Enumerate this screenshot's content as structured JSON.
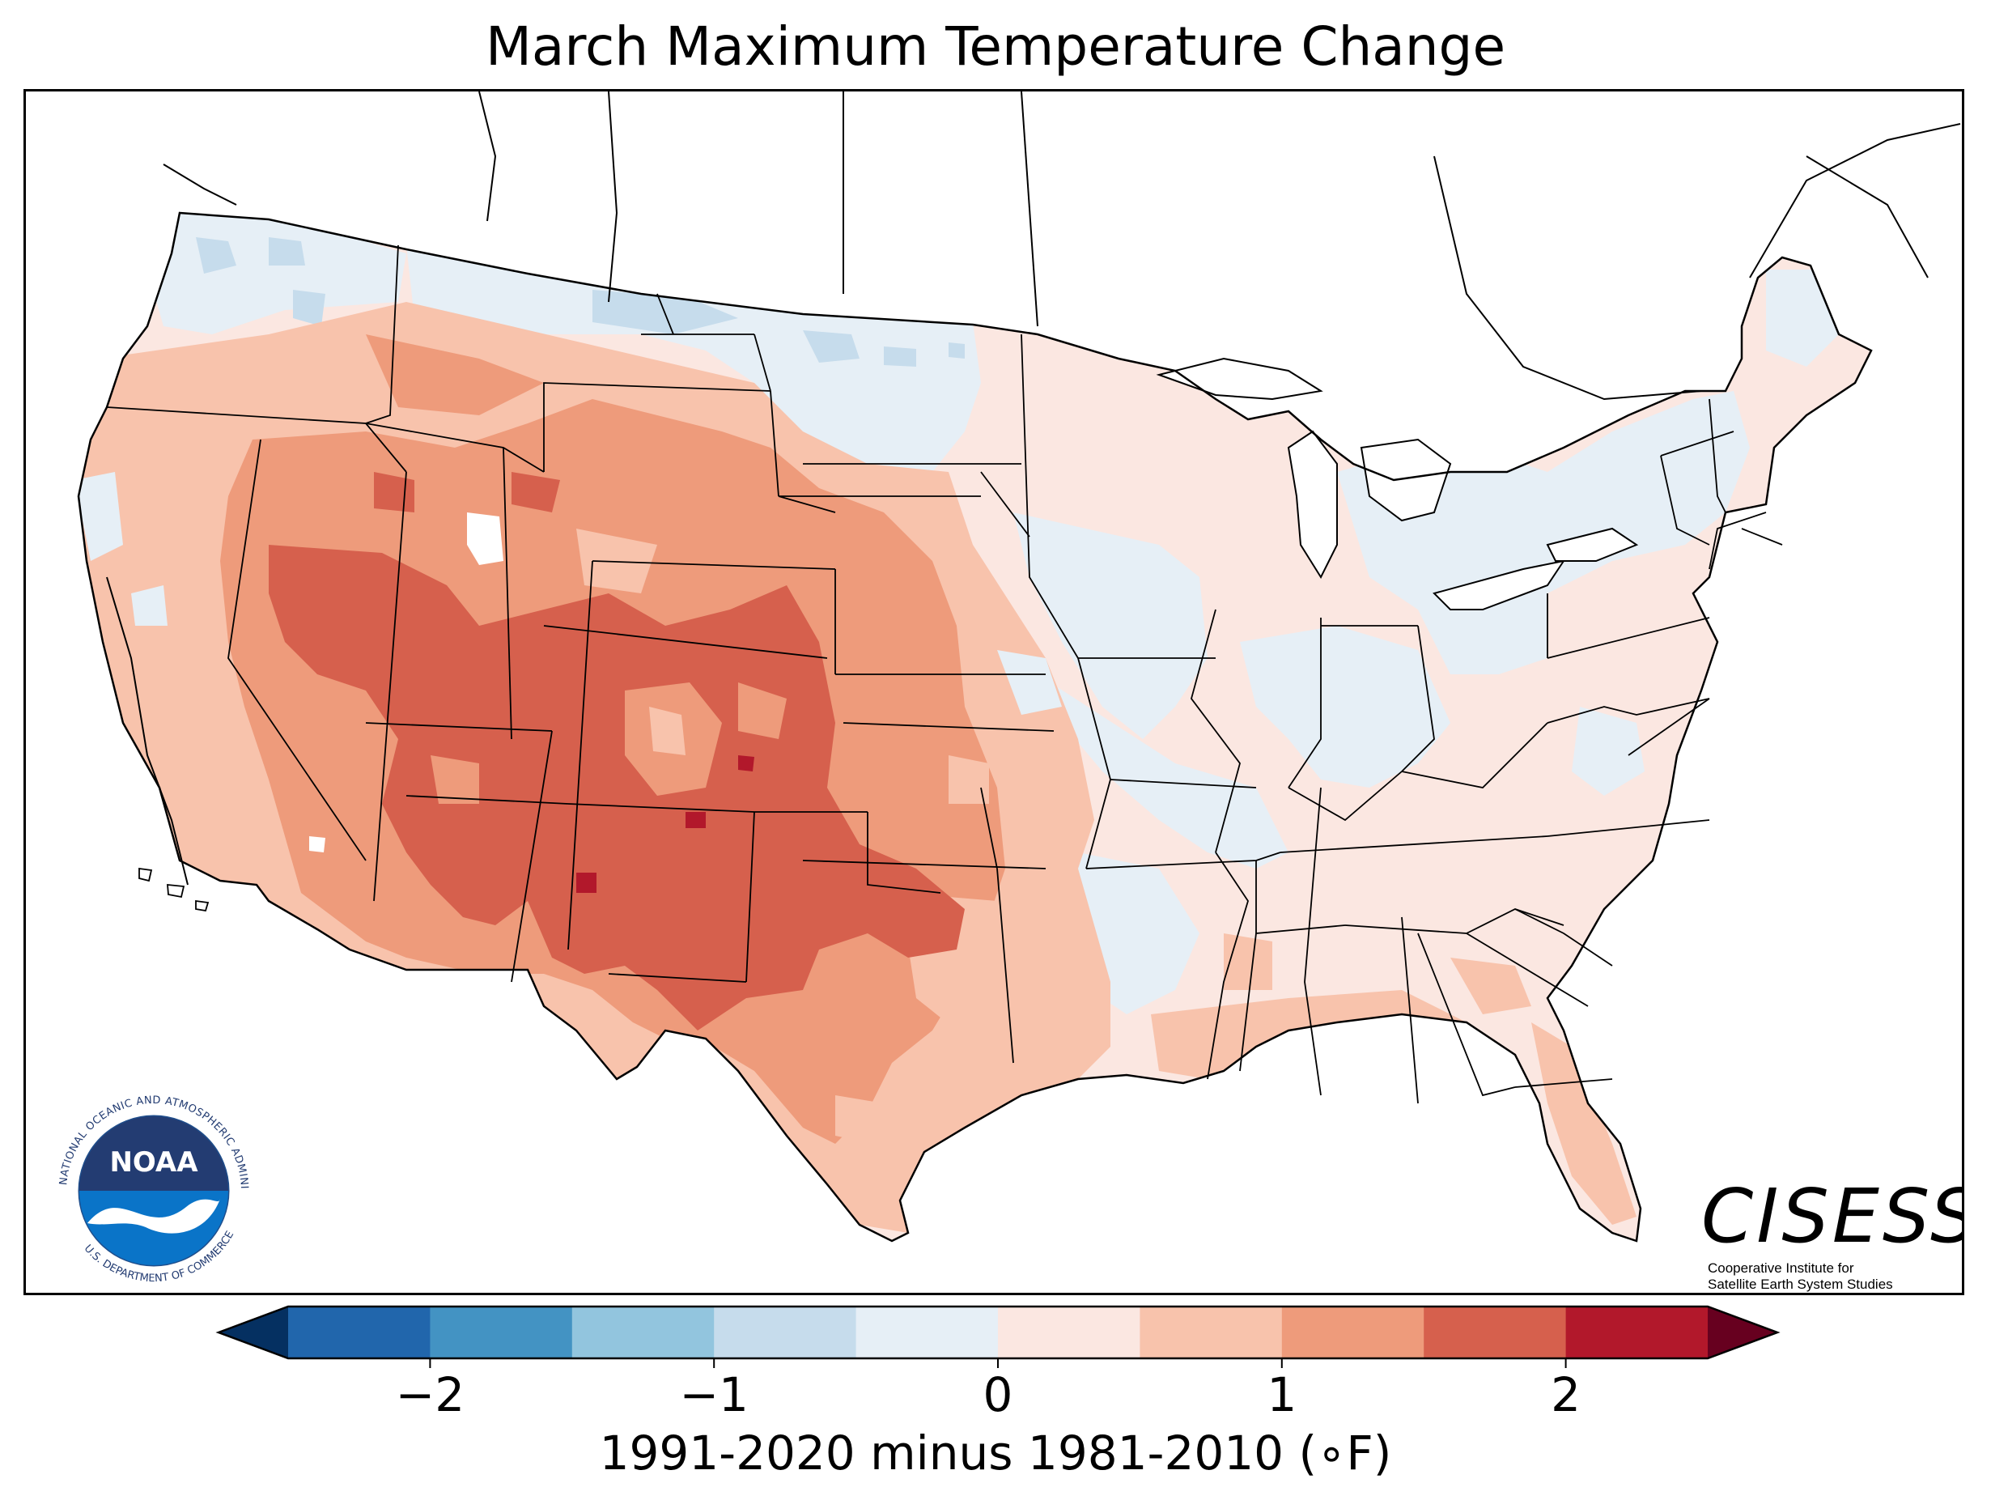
{
  "map": {
    "title": "March Maximum Temperature Change",
    "region": "Contiguous United States",
    "colorbar": {
      "label": "1991-2020 minus 1981-2010 (∘F)",
      "ticks": [
        "−2",
        "−1",
        "0",
        "1",
        "2"
      ],
      "tick_values": [
        -2,
        -1,
        0,
        1,
        2
      ],
      "range": [
        -2.5,
        2.5
      ],
      "extend": "both",
      "bins": [
        {
          "from": -2.5,
          "to": -2.0,
          "color": "#2166ac"
        },
        {
          "from": -2.0,
          "to": -1.5,
          "color": "#4393c3"
        },
        {
          "from": -1.5,
          "to": -1.0,
          "color": "#92c5de"
        },
        {
          "from": -1.0,
          "to": -0.5,
          "color": "#c6dcec"
        },
        {
          "from": -0.5,
          "to": 0.0,
          "color": "#e6eff6"
        },
        {
          "from": 0.0,
          "to": 0.5,
          "color": "#fbe7e1"
        },
        {
          "from": 0.5,
          "to": 1.0,
          "color": "#f8c3ac"
        },
        {
          "from": 1.0,
          "to": 1.5,
          "color": "#ee9b7b"
        },
        {
          "from": 1.5,
          "to": 2.0,
          "color": "#d6604d"
        },
        {
          "from": 2.0,
          "to": 2.5,
          "color": "#b2182b"
        }
      ],
      "under_color": "#053061",
      "over_color": "#67001f"
    },
    "logos": {
      "noaa": {
        "ring_text": "NATIONAL OCEANIC AND ATMOSPHERIC ADMINISTRATION",
        "bottom_text": "U.S. DEPARTMENT OF COMMERCE",
        "center_text": "NOAA"
      },
      "cisess": {
        "name": "CISESS",
        "line1": "Cooperative Institute for",
        "line2": "Satellite Earth System Studies"
      }
    },
    "colors": {
      "land_outline": "#000000",
      "water": "#ffffff"
    }
  }
}
